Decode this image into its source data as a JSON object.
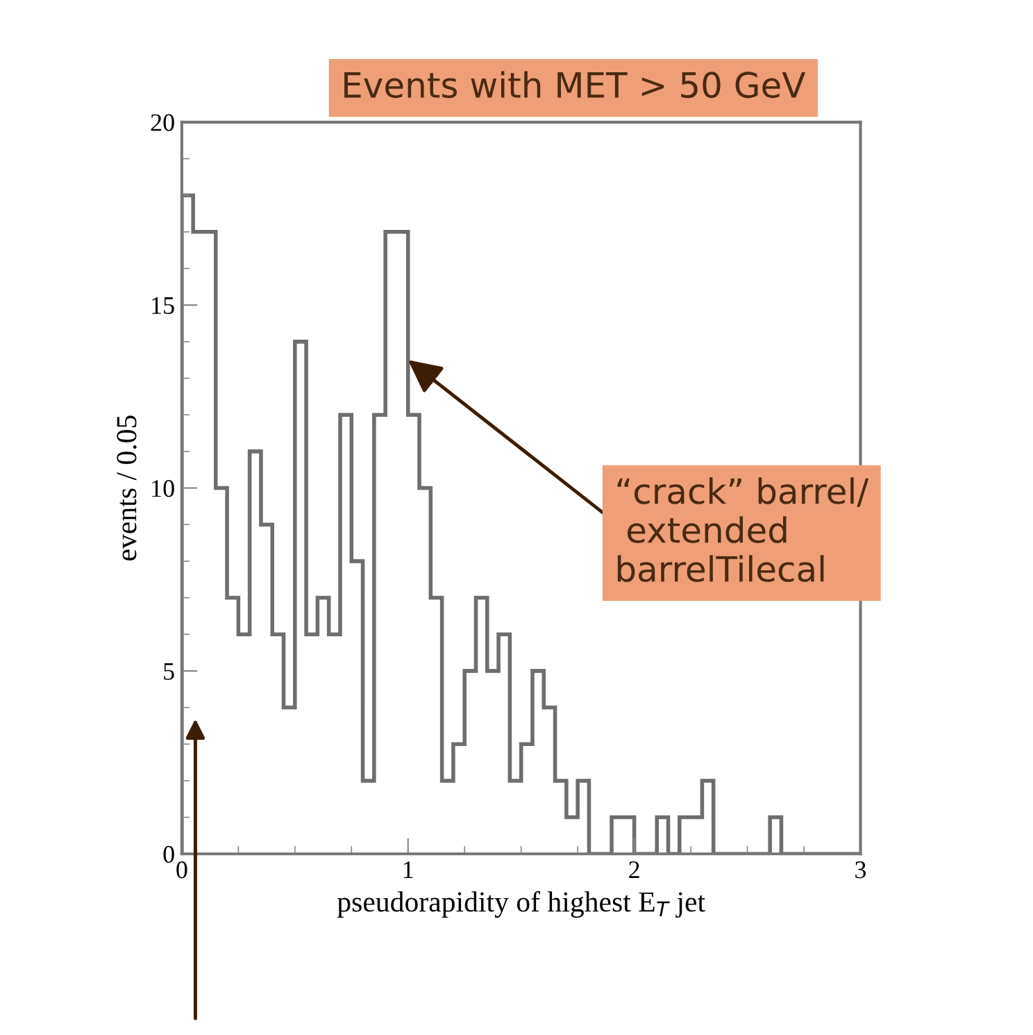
{
  "chart_data": {
    "type": "histogram",
    "title": "Events with MET > 50 GeV",
    "xlabel": "pseudorapidity of highest E$_{T}$ jet",
    "ylabel": "events / 0.05",
    "bins": [
      0,
      0.05,
      0.1,
      0.15,
      0.2,
      0.25,
      0.3,
      0.35,
      0.4,
      0.45,
      0.5,
      0.55,
      0.6,
      0.65,
      0.7,
      0.75,
      0.8,
      0.85,
      0.9,
      0.95,
      1.0,
      1.05,
      1.1,
      1.15,
      1.2,
      1.25,
      1.3,
      1.35,
      1.4,
      1.45,
      1.5,
      1.55,
      1.6,
      1.65,
      1.7,
      1.75,
      1.8,
      1.85,
      1.9,
      1.95,
      2.0,
      2.05,
      2.1,
      2.15,
      2.2,
      2.25,
      2.3,
      2.35,
      2.4,
      2.45,
      2.5,
      2.55,
      2.6,
      2.65,
      2.7,
      2.75,
      2.8,
      2.85,
      2.9,
      2.95,
      3.0
    ],
    "values": [
      18,
      17,
      17,
      10,
      7,
      6,
      11,
      9,
      6,
      4,
      14,
      6,
      7,
      6,
      12,
      8,
      2,
      12,
      17,
      17,
      12,
      10,
      7,
      2,
      3,
      5,
      7,
      5,
      6,
      2,
      3,
      5,
      4,
      2,
      1,
      2,
      0,
      0,
      1,
      1,
      0,
      0,
      1,
      0,
      1,
      1,
      2,
      0,
      0,
      0,
      0,
      0,
      1,
      0,
      0,
      0,
      0,
      0,
      0,
      0
    ],
    "color": "#6e6e6e",
    "xlim": [
      0,
      3
    ],
    "xticks": [
      0,
      1,
      2,
      3
    ],
    "ylim": [
      0,
      20
    ],
    "yticks": [
      0,
      5,
      10,
      15,
      20
    ],
    "grid": false,
    "annotations": [
      {
        "text": "“crack” barrel/\n extended\nbarrelTilecal",
        "x": 1.0,
        "y": 13.5
      }
    ]
  }
}
